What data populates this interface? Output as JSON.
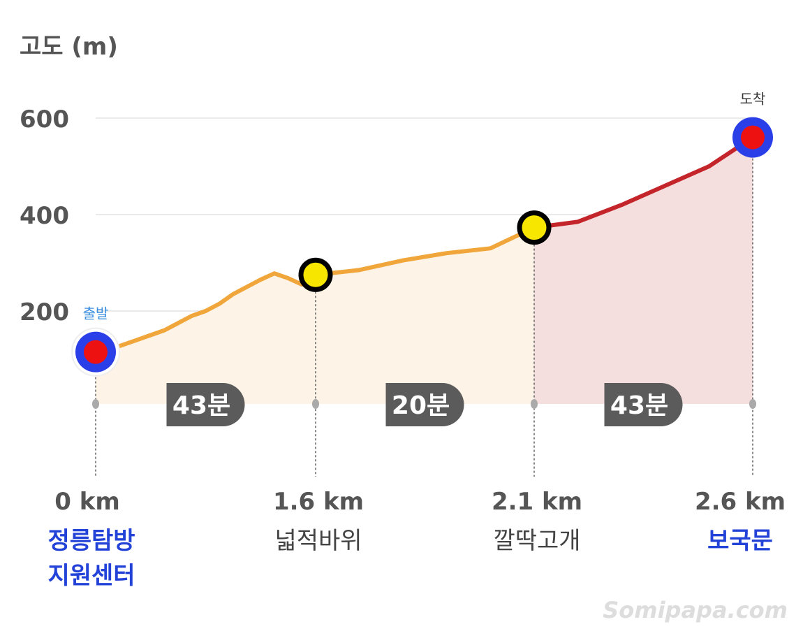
{
  "chart_data": {
    "type": "area",
    "ylabel": "고도 (m)",
    "ylim": [
      0,
      600
    ],
    "y_ticks": [
      "200",
      "400",
      "600"
    ],
    "grid": true,
    "profile": {
      "x_km": [
        0.0,
        0.1,
        0.2,
        0.3,
        0.4,
        0.5,
        0.6,
        0.7,
        0.8,
        0.9,
        1.0,
        1.1,
        1.2,
        1.3,
        1.4,
        1.5,
        1.6,
        1.7,
        1.8,
        1.9,
        2.0,
        2.1,
        2.2,
        2.3,
        2.4,
        2.5,
        2.6
      ],
      "elevation_m": [
        115,
        120,
        130,
        140,
        150,
        160,
        175,
        190,
        200,
        215,
        235,
        250,
        265,
        278,
        268,
        255,
        275,
        285,
        305,
        320,
        330,
        373,
        385,
        420,
        460,
        500,
        560
      ]
    },
    "checkpoints": [
      {
        "km": 0.0,
        "elevation_m": 115,
        "distance_label": "0 km",
        "name_lines": [
          "정릉탐방",
          "지원센터"
        ],
        "marker": "start",
        "tag": "출발"
      },
      {
        "km": 1.6,
        "elevation_m": 275,
        "distance_label": "1.6 km",
        "name_lines": [
          "넓적바위"
        ],
        "marker": "mid",
        "tag": ""
      },
      {
        "km": 2.1,
        "elevation_m": 373,
        "distance_label": "2.1 km",
        "name_lines": [
          "깔딱고개"
        ],
        "marker": "mid",
        "tag": ""
      },
      {
        "km": 2.6,
        "elevation_m": 560,
        "distance_label": "2.6 km",
        "name_lines": [
          "보국문"
        ],
        "marker": "end",
        "tag": "도착"
      }
    ],
    "segment_times": [
      "43분",
      "20분",
      "43분"
    ],
    "colors": {
      "line_easy": "#f0a63a",
      "line_hard": "#c4252a",
      "fill_easy": "#fdf3e6",
      "fill_hard": "#f5dede",
      "grid": "#e4e4e4",
      "endpoint_ring": "#2b3fe8",
      "endpoint_core": "#ee1111",
      "mid_marker": "#f6e600",
      "time_badge": "#5b5b5b",
      "blue_label": "#2343d8"
    }
  },
  "watermark": "Somipapa.com"
}
